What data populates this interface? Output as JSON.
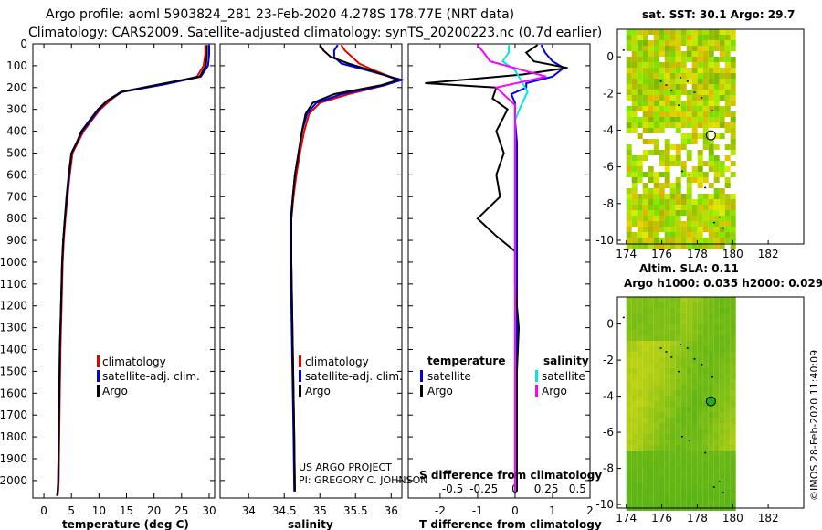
{
  "header": {
    "title1": "Argo profile: aoml 5903824_281 23-Feb-2020 4.278S 178.77E (NRT data)",
    "title2": "Climatology: CARS2009. Satellite-adjusted climatology: synTS_20200223.nc (0.7d earlier)"
  },
  "colors": {
    "argo": "#000000",
    "climatology": "#e60000",
    "satellite": "#0000e6",
    "sat_salinity": "#00e6e6",
    "argo_salinity": "#ff00ff"
  },
  "credits": {
    "line1": "US ARGO PROJECT",
    "line2": "PI: GREGORY C. JOHNSON"
  },
  "timestamp": "©IMOS 28-Feb-2020 11:40:09",
  "chart_data": [
    {
      "id": "temperature",
      "type": "line",
      "xlabel": "temperature (deg C)",
      "ylabel": "",
      "xlim": [
        -2,
        31
      ],
      "ylim": [
        2080,
        0
      ],
      "xticks": [
        0,
        5,
        10,
        15,
        20,
        25,
        30
      ],
      "yticks": [
        0,
        100,
        200,
        300,
        400,
        500,
        600,
        700,
        800,
        900,
        1000,
        1100,
        1200,
        1300,
        1400,
        1500,
        1600,
        1700,
        1800,
        1900,
        2000
      ],
      "legend": [
        {
          "name": "climatology",
          "color": "#e60000"
        },
        {
          "name": "satellite-adj. clim.",
          "color": "#0000e6"
        },
        {
          "name": "Argo",
          "color": "#000000"
        }
      ],
      "series": [
        {
          "name": "climatology",
          "color": "#e60000",
          "x": [
            29.3,
            29.3,
            29.0,
            27.8,
            22.0,
            14.0,
            12.0,
            10.2,
            8.7,
            7.2,
            6.2,
            5.2,
            4.7,
            4.3,
            3.9,
            3.6,
            3.4,
            3.2,
            3.0,
            2.9,
            2.8,
            2.7,
            2.6,
            2.5
          ],
          "y": [
            5,
            50,
            100,
            150,
            185,
            220,
            260,
            300,
            350,
            400,
            450,
            500,
            600,
            700,
            800,
            900,
            1000,
            1200,
            1400,
            1600,
            1800,
            2000,
            2050,
            2070
          ]
        },
        {
          "name": "satellite-adj. clim.",
          "color": "#0000e6",
          "x": [
            30.0,
            30.0,
            29.8,
            28.5,
            22.0,
            14.2,
            11.6,
            10.0,
            8.5,
            7.0,
            6.0,
            5.0,
            4.6,
            4.2,
            3.8,
            3.5,
            3.3,
            3.1,
            2.9,
            2.8,
            2.7,
            2.6,
            2.5,
            2.4
          ],
          "y": [
            5,
            50,
            100,
            150,
            185,
            220,
            260,
            300,
            350,
            400,
            450,
            500,
            600,
            700,
            800,
            900,
            1000,
            1200,
            1400,
            1600,
            1800,
            2000,
            2050,
            2070
          ]
        },
        {
          "name": "Argo",
          "color": "#000000",
          "x": [
            29.6,
            29.6,
            29.4,
            28.3,
            21.0,
            14.0,
            11.5,
            9.8,
            8.3,
            6.8,
            6.0,
            5.0,
            4.5,
            4.1,
            3.8,
            3.5,
            3.3,
            3.1,
            2.9,
            2.8,
            2.7,
            2.6,
            2.5,
            2.4
          ],
          "y": [
            5,
            50,
            100,
            150,
            185,
            220,
            260,
            300,
            350,
            400,
            450,
            500,
            600,
            700,
            800,
            900,
            1000,
            1200,
            1400,
            1600,
            1800,
            2000,
            2050,
            2070
          ]
        }
      ]
    },
    {
      "id": "salinity",
      "type": "line",
      "xlabel": "salinity",
      "ylabel": "",
      "xlim": [
        33.6,
        36.15
      ],
      "ylim": [
        2080,
        0
      ],
      "xticks": [
        34,
        34.5,
        35,
        35.5,
        36
      ],
      "xtick_labels": [
        "34",
        "34.5",
        "35",
        "35.5",
        "36"
      ],
      "legend": [
        {
          "name": "climatology",
          "color": "#e60000"
        },
        {
          "name": "satellite-adj. clim.",
          "color": "#0000e6"
        },
        {
          "name": "Argo",
          "color": "#000000"
        }
      ],
      "series": [
        {
          "name": "climatology",
          "color": "#e60000",
          "x": [
            35.3,
            35.35,
            35.45,
            35.55,
            35.75,
            36.1,
            35.9,
            35.4,
            35.0,
            34.85,
            34.78,
            34.72,
            34.67,
            34.63,
            34.6,
            34.6,
            34.6,
            34.61,
            34.62,
            34.63,
            34.64,
            34.65
          ],
          "y": [
            5,
            30,
            60,
            90,
            120,
            165,
            190,
            230,
            270,
            320,
            400,
            500,
            600,
            700,
            800,
            900,
            1000,
            1200,
            1400,
            1600,
            1800,
            2050
          ]
        },
        {
          "name": "satellite-adj. clim.",
          "color": "#0000e6",
          "x": [
            35.25,
            35.2,
            35.2,
            35.3,
            35.65,
            36.15,
            35.9,
            35.3,
            34.95,
            34.82,
            34.75,
            34.7,
            34.65,
            34.62,
            34.59,
            34.59,
            34.59,
            34.6,
            34.61,
            34.62,
            34.63,
            34.64
          ],
          "y": [
            5,
            30,
            60,
            90,
            120,
            165,
            190,
            230,
            270,
            320,
            400,
            500,
            600,
            700,
            800,
            900,
            1000,
            1200,
            1400,
            1600,
            1800,
            2050
          ]
        },
        {
          "name": "Argo",
          "color": "#000000",
          "x": [
            35.0,
            35.05,
            35.15,
            35.4,
            35.7,
            36.1,
            35.85,
            35.2,
            34.9,
            34.8,
            34.75,
            34.7,
            34.65,
            34.62,
            34.6,
            34.6,
            34.6,
            34.61,
            34.62,
            34.63,
            34.64,
            34.65
          ],
          "y": [
            5,
            30,
            60,
            90,
            120,
            165,
            190,
            230,
            270,
            320,
            400,
            500,
            600,
            700,
            800,
            900,
            1000,
            1200,
            1400,
            1600,
            1800,
            2050
          ]
        }
      ]
    },
    {
      "id": "differences",
      "type": "line",
      "xlabel": "T difference from climatology",
      "xlabel_top": "S difference from climatology",
      "xlim": [
        -2.85,
        2.0
      ],
      "ylim": [
        2080,
        0
      ],
      "xticks": [
        -2,
        -1,
        0,
        1,
        2
      ],
      "xtick_labels": [
        "-2",
        "-1",
        "0",
        "1",
        "2"
      ],
      "sxticks": [
        -0.5,
        -0.25,
        0,
        0.25,
        0.5
      ],
      "sxtick_labels": [
        "-0.5",
        "-0.25",
        "0",
        "0.25",
        "0.5"
      ],
      "legend_left_title": "temperature",
      "legend_right_title": "salinity",
      "legend_left": [
        {
          "name": "satellite",
          "color": "#0000e6"
        },
        {
          "name": "Argo",
          "color": "#000000"
        }
      ],
      "legend_right": [
        {
          "name": "satellite",
          "color": "#00e6e6"
        },
        {
          "name": "Argo",
          "color": "#ff00ff"
        }
      ],
      "series": [
        {
          "name": "T satellite",
          "color": "#0000e6",
          "x": [
            0.7,
            0.8,
            1.0,
            1.3,
            1.0,
            0.3,
            0.3,
            -0.1,
            0.0,
            0.0,
            0.05,
            0.05,
            0.05,
            0.05,
            0.05,
            0.05,
            0.05,
            0.05,
            0.05,
            0.05,
            0.05,
            0.05
          ],
          "y": [
            5,
            40,
            80,
            110,
            150,
            180,
            200,
            230,
            270,
            350,
            450,
            550,
            700,
            900,
            1000,
            1200,
            1400,
            1600,
            1800,
            1900,
            2000,
            2050
          ]
        },
        {
          "name": "T Argo",
          "color": "#000000",
          "x": [
            0.6,
            0.3,
            0.5,
            1.4,
            0.2,
            -2.4,
            -0.5,
            -0.6,
            -0.2,
            -0.5,
            -0.3,
            -0.5,
            -0.4,
            -1.0,
            -0.5,
            0.0,
            0.0,
            0.1,
            0.05,
            0.05,
            0.05,
            0.05
          ],
          "y": [
            5,
            40,
            80,
            110,
            140,
            180,
            200,
            250,
            300,
            400,
            500,
            600,
            700,
            800,
            880,
            950,
            1100,
            1300,
            1500,
            1700,
            1900,
            2050
          ]
        },
        {
          "name": "S satellite",
          "color": "#00e6e6",
          "x": [
            -0.05,
            -0.05,
            -0.1,
            0.0,
            0.05,
            0.1,
            0.05,
            0.0,
            0.0,
            0.0,
            0.0,
            0.0,
            0.0,
            0.0,
            0.0,
            0.0,
            0.0,
            0.0
          ],
          "y": [
            5,
            40,
            80,
            120,
            170,
            220,
            280,
            350,
            450,
            600,
            800,
            1000,
            1200,
            1400,
            1600,
            1800,
            2000,
            2050
          ]
        },
        {
          "name": "S Argo",
          "color": "#ff00ff",
          "x": [
            -0.3,
            -0.25,
            -0.2,
            0.25,
            -0.15,
            0.0,
            0.0,
            0.0,
            0.0,
            0.0,
            0.0,
            0.0,
            0.0,
            0.0,
            0.0,
            0.0,
            0.0
          ],
          "y": [
            5,
            40,
            80,
            150,
            200,
            280,
            350,
            450,
            600,
            800,
            1000,
            1200,
            1400,
            1600,
            1800,
            2000,
            2050
          ]
        }
      ]
    },
    {
      "id": "sst_map",
      "type": "heatmap",
      "title": "sat. SST: 30.1 Argo: 29.7",
      "xlim": [
        173.5,
        184
      ],
      "ylim": [
        -10.2,
        1.5
      ],
      "xticks": [
        174,
        176,
        178,
        180,
        182
      ],
      "yticks": [
        0,
        -2,
        -4,
        -6,
        -8,
        -10
      ],
      "data_extent": [
        174,
        180
      ],
      "float_position": [
        178.77,
        -4.278
      ]
    },
    {
      "id": "sla_map",
      "type": "heatmap",
      "title": "Altim. SLA: 0.11",
      "subtitle": "Argo h1000: 0.035 h2000: 0.029",
      "xlim": [
        173.5,
        184
      ],
      "ylim": [
        -10.2,
        1.5
      ],
      "xticks": [
        174,
        176,
        178,
        180,
        182
      ],
      "yticks": [
        0,
        -2,
        -4,
        -6,
        -8,
        -10
      ],
      "data_extent": [
        174,
        180
      ],
      "float_position": [
        178.77,
        -4.278
      ]
    }
  ]
}
